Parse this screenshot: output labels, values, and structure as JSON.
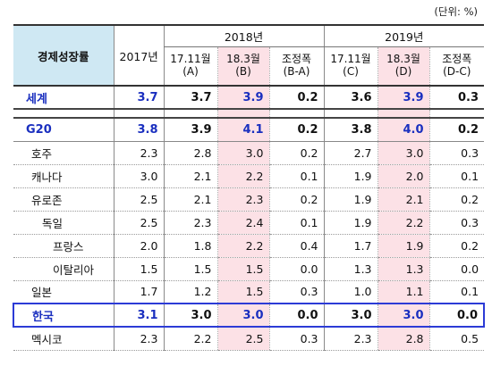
{
  "unit_label": "(단위: %)",
  "header": {
    "corner": "경제성장률",
    "col_2017": "2017년",
    "group_2018": "2018년",
    "group_2019": "2019년",
    "sub_2018": [
      {
        "l1": "17.11월",
        "l2": "(A)"
      },
      {
        "l1": "18.3월",
        "l2": "(B)"
      },
      {
        "l1": "조정폭",
        "l2": "(B-A)"
      }
    ],
    "sub_2019": [
      {
        "l1": "17.11월",
        "l2": "(C)"
      },
      {
        "l1": "18.3월",
        "l2": "(D)"
      },
      {
        "l1": "조정폭",
        "l2": "(D-C)"
      }
    ]
  },
  "rows": [
    {
      "name": "세계",
      "v": [
        "3.7",
        "3.7",
        "3.9",
        "0.2",
        "3.6",
        "3.9",
        "0.3"
      ]
    },
    {
      "name": "G20",
      "v": [
        "3.8",
        "3.9",
        "4.1",
        "0.2",
        "3.8",
        "4.0",
        "0.2"
      ]
    },
    {
      "name": "호주",
      "v": [
        "2.3",
        "2.8",
        "3.0",
        "0.2",
        "2.7",
        "3.0",
        "0.3"
      ]
    },
    {
      "name": "캐나다",
      "v": [
        "3.0",
        "2.1",
        "2.2",
        "0.1",
        "1.9",
        "2.0",
        "0.1"
      ]
    },
    {
      "name": "유로존",
      "v": [
        "2.5",
        "2.1",
        "2.3",
        "0.2",
        "1.9",
        "2.1",
        "0.2"
      ]
    },
    {
      "name": "독일",
      "v": [
        "2.5",
        "2.3",
        "2.4",
        "0.1",
        "1.9",
        "2.2",
        "0.3"
      ]
    },
    {
      "name": "프랑스",
      "v": [
        "2.0",
        "1.8",
        "2.2",
        "0.4",
        "1.7",
        "1.9",
        "0.2"
      ]
    },
    {
      "name": "이탈리아",
      "v": [
        "1.5",
        "1.5",
        "1.5",
        "0.0",
        "1.3",
        "1.3",
        "0.0"
      ]
    },
    {
      "name": "일본",
      "v": [
        "1.7",
        "1.2",
        "1.5",
        "0.3",
        "1.0",
        "1.1",
        "0.1"
      ]
    },
    {
      "name": "한국",
      "v": [
        "3.1",
        "3.0",
        "3.0",
        "0.0",
        "3.0",
        "3.0",
        "0.0"
      ]
    },
    {
      "name": "멕시코",
      "v": [
        "2.3",
        "2.2",
        "2.5",
        "0.3",
        "2.3",
        "2.8",
        "0.5"
      ]
    }
  ],
  "colors": {
    "header_fill": "#cfe8f3",
    "highlight_fill": "#fce1e6",
    "emphasis_text": "#1a2fbf",
    "korea_box": "#2c3bd6"
  }
}
